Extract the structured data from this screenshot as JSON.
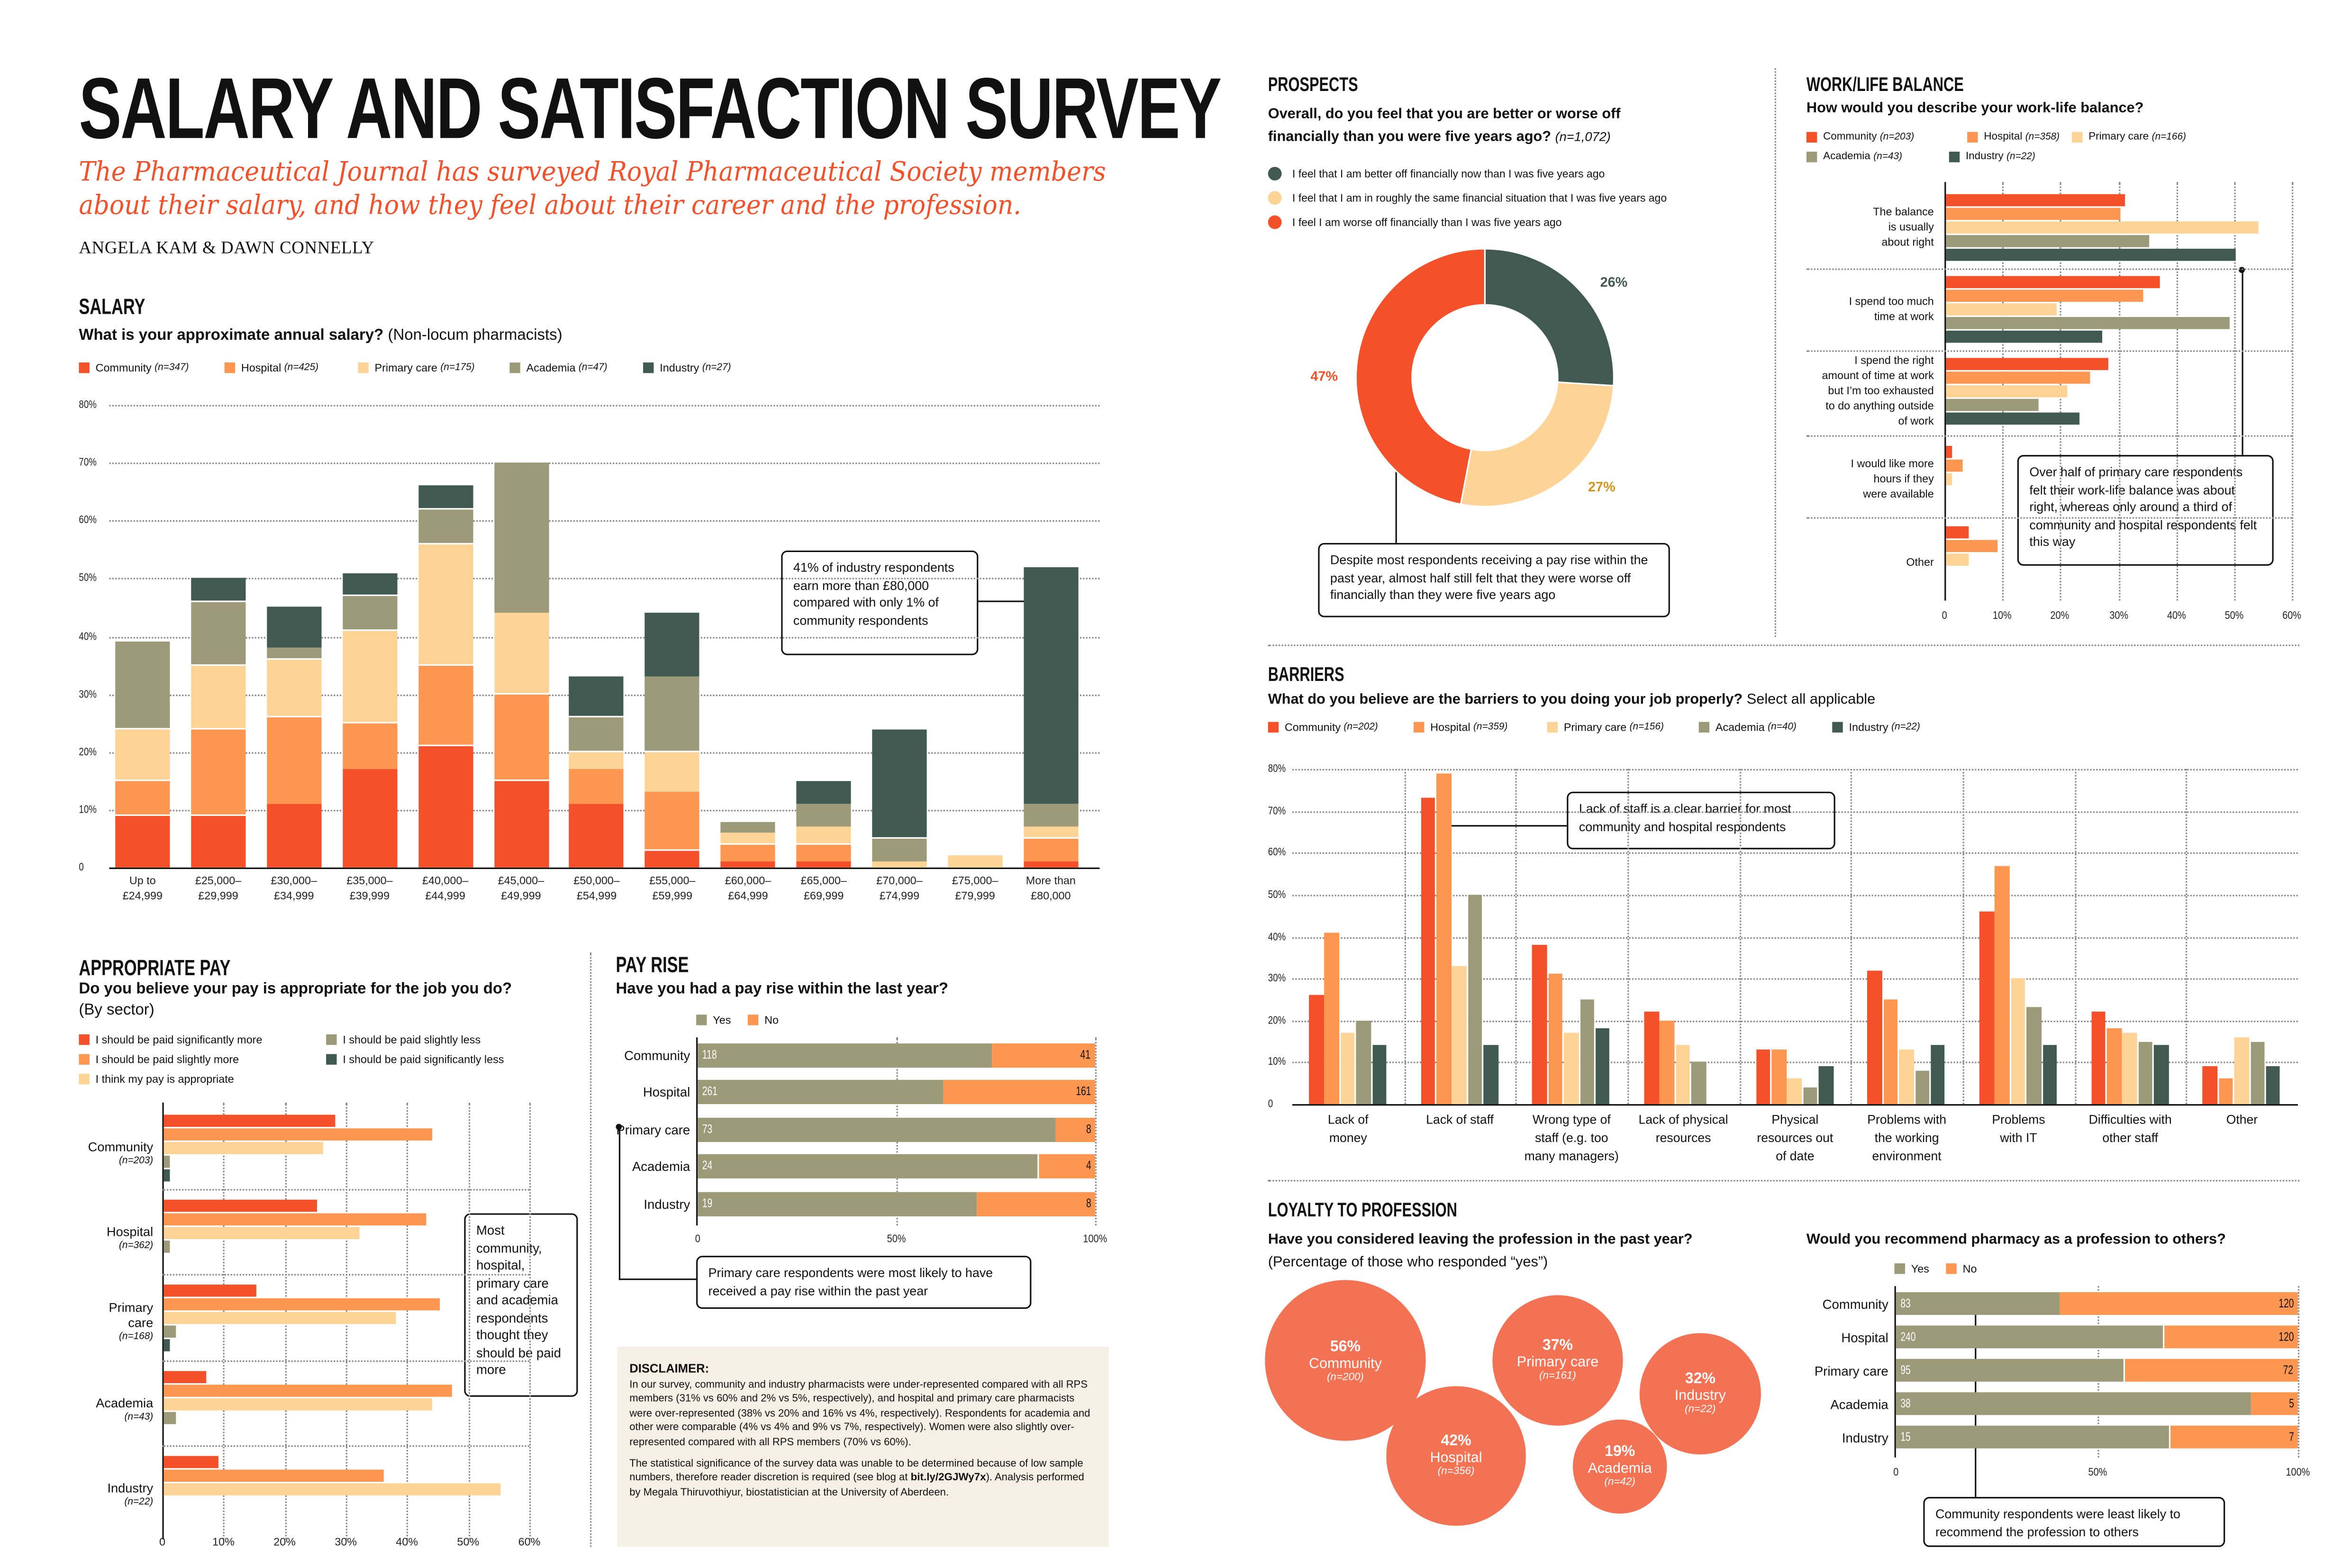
{
  "header": {
    "title": "SALARY AND SATISFACTION SURVEY",
    "subtitle_line1": "The Pharmaceutical Journal has surveyed Royal Pharmaceutical Society members",
    "subtitle_line2": "about their salary, and how they feel about their career and the profession.",
    "authors": "ANGELA KAM & DAWN CONNELLY"
  },
  "colors": {
    "community": "#f4502a",
    "hospital": "#fd9650",
    "primary_care": "#fed396",
    "academia": "#9d9a79",
    "industry": "#405a51",
    "bubble": "#f47254",
    "disclaimer_bg": "#f5efe6",
    "yes": "#9d9a79",
    "no": "#fd9650"
  },
  "sections": {
    "salary": {
      "heading": "SALARY",
      "question": "What is your approximate annual salary?",
      "question_note": "(Non-locum pharmacists)",
      "callout": "41% of industry respondents earn more than £80,000 compared with only 1% of community respondents"
    },
    "appropriate_pay": {
      "heading": "APPROPRIATE PAY",
      "question": "Do you believe your pay is appropriate for the job you do?",
      "question_note": "(By sector)",
      "callout": "Most community, hospital, primary care and academia respondents thought they should be paid more"
    },
    "pay_rise": {
      "heading": "PAY RISE",
      "question": "Have you had a pay rise within the last year?",
      "callout": "Primary care respondents were most likely to have received a pay rise within the past year"
    },
    "disclaimer": {
      "heading": "DISCLAIMER:",
      "para1": "In our survey, community and industry pharmacists were under-represented compared with all RPS members (31% vs 60% and 2% vs 5%, respectively), and hospital and primary care pharmacists were over-represented (38% vs 20% and 16% vs 4%, respectively). Respondents for academia and other were comparable (4% vs 4% and 9% vs 7%, respectively). Women were also slightly over-represented compared with all RPS members (70% vs 60%).",
      "para2_start": "The statistical significance of the survey data was unable to be determined because of low sample numbers, therefore reader discretion is required (see blog at ",
      "link": "bit.ly/2GJWy7x",
      "para2_end": "). Analysis performed by Megala Thiruvothiyur, biostatistician at the University of Aberdeen."
    },
    "prospects": {
      "heading": "PROSPECTS",
      "question_line1": "Overall, do you feel that you are better or worse off",
      "question_line2": "financially than you were five years ago?",
      "question_note": "(n=1,072)",
      "callout": "Despite most respondents receiving a pay rise within the past year, almost half still felt that they were worse off financially than they were five years ago"
    },
    "work_life": {
      "heading": "WORK/LIFE BALANCE",
      "question": "How would you describe your work-life balance?",
      "callout": "Over half of primary care respondents felt their work-life balance was about right, whereas only around a third of community and hospital respondents felt this way"
    },
    "barriers": {
      "heading": "BARRIERS",
      "question": "What do you believe are the barriers to you doing your job properly?",
      "question_note": "Select all applicable",
      "callout": "Lack of staff is a clear barrier for most community and hospital respondents"
    },
    "loyalty": {
      "heading": "LOYALTY TO PROFESSION",
      "question": "Have you considered leaving the profession in the past year?",
      "question_note": "(Percentage of those who responded “yes”)"
    },
    "recommend": {
      "question": "Would you recommend pharmacy as a profession to others?",
      "callout": "Community respondents were least likely to recommend the profession to others"
    }
  },
  "chart_data": [
    {
      "id": "salary",
      "type": "bar",
      "stacked": true,
      "categories": [
        [
          "Up to",
          "£24,999"
        ],
        [
          "£25,000–",
          "£29,999"
        ],
        [
          "£30,000–",
          "£34,999"
        ],
        [
          "£35,000–",
          "£39,999"
        ],
        [
          "£40,000–",
          "£44,999"
        ],
        [
          "£45,000–",
          "£49,999"
        ],
        [
          "£50,000–",
          "£54,999"
        ],
        [
          "£55,000–",
          "£59,999"
        ],
        [
          "£60,000–",
          "£64,999"
        ],
        [
          "£65,000–",
          "£69,999"
        ],
        [
          "£70,000–",
          "£74,999"
        ],
        [
          "£75,000–",
          "£79,999"
        ],
        [
          "More than",
          "£80,000"
        ]
      ],
      "series": [
        {
          "name": "Community",
          "n": "(n=347)",
          "color": "#f4502a",
          "values": [
            9,
            9,
            11,
            17,
            21,
            15,
            11,
            3,
            1,
            1,
            0,
            0,
            1
          ]
        },
        {
          "name": "Hospital",
          "n": "(n=425)",
          "color": "#fd9650",
          "values": [
            6,
            15,
            15,
            8,
            14,
            15,
            6,
            10,
            3,
            3,
            0,
            0,
            4
          ]
        },
        {
          "name": "Primary care",
          "n": "(n=175)",
          "color": "#fed396",
          "values": [
            9,
            11,
            10,
            16,
            21,
            14,
            3,
            7,
            2,
            3,
            1,
            2,
            2
          ]
        },
        {
          "name": "Academia",
          "n": "(n=47)",
          "color": "#9d9a79",
          "values": [
            15,
            11,
            2,
            6,
            6,
            26,
            6,
            13,
            2,
            4,
            4,
            0,
            4
          ]
        },
        {
          "name": "Industry",
          "n": "(n=27)",
          "color": "#405a51",
          "values": [
            0,
            4,
            7,
            4,
            4,
            0,
            7,
            11,
            0,
            4,
            19,
            0,
            41
          ]
        }
      ],
      "ylim": [
        0,
        80
      ],
      "yticks": [
        "0",
        "10%",
        "20%",
        "30%",
        "40%",
        "50%",
        "60%",
        "70%",
        "80%"
      ],
      "grid": true,
      "legend": "top-left"
    },
    {
      "id": "appropriate_pay",
      "type": "bar",
      "orientation": "horizontal",
      "categories": [
        {
          "label": [
            "Community"
          ],
          "n": "(n=203)"
        },
        {
          "label": [
            "Hospital"
          ],
          "n": "(n=362)"
        },
        {
          "label": [
            "Primary",
            "care"
          ],
          "n": "(n=168)"
        },
        {
          "label": [
            "Academia"
          ],
          "n": "(n=43)"
        },
        {
          "label": [
            "Industry"
          ],
          "n": "(n=22)"
        }
      ],
      "series": [
        {
          "name": "I should be paid significantly more",
          "color": "#f4502a",
          "values": [
            28,
            25,
            15,
            7,
            9
          ]
        },
        {
          "name": "I should be paid slightly more",
          "color": "#fd9650",
          "values": [
            44,
            43,
            45,
            47,
            36
          ]
        },
        {
          "name": "I think my pay is appropriate",
          "color": "#fed396",
          "values": [
            26,
            32,
            38,
            44,
            55
          ]
        },
        {
          "name": "I should be paid slightly less",
          "color": "#9d9a79",
          "values": [
            1,
            1,
            2,
            2,
            0
          ]
        },
        {
          "name": "I should be paid significantly less",
          "color": "#405a51",
          "values": [
            1,
            0,
            1,
            0,
            0
          ]
        }
      ],
      "legend_order": [
        0,
        3,
        1,
        4,
        2
      ],
      "xlim": [
        0,
        60
      ],
      "xticks": [
        "0",
        "10%",
        "20%",
        "30%",
        "40%",
        "50%",
        "60%"
      ],
      "grid": true
    },
    {
      "id": "pay_rise",
      "type": "bar",
      "orientation": "horizontal",
      "stacked": true,
      "normalized": true,
      "categories": [
        "Community",
        "Hospital",
        "Primary care",
        "Academia",
        "Industry"
      ],
      "series": [
        {
          "name": "Yes",
          "color": "#9d9a79",
          "values": [
            118,
            261,
            73,
            24,
            19
          ]
        },
        {
          "name": "No",
          "color": "#fd9650",
          "values": [
            41,
            161,
            8,
            4,
            8
          ]
        }
      ],
      "xticks": [
        "0",
        "50%",
        "100%"
      ]
    },
    {
      "id": "prospects",
      "type": "pie",
      "donut": true,
      "labels": [
        "I feel that I am better off financially now than I was five years ago",
        "I feel that I am in roughly the same financial situation that I was five years ago",
        "I feel I am worse off financially than I was five years ago"
      ],
      "values": [
        26,
        27,
        47
      ],
      "value_labels": [
        "26%",
        "27%",
        "47%"
      ],
      "colors": [
        "#405a51",
        "#fed396",
        "#f4502a"
      ],
      "label_colors": [
        "#405a51",
        "#d4961a",
        "#f4502a"
      ]
    },
    {
      "id": "work_life",
      "type": "bar",
      "orientation": "horizontal",
      "categories": [
        [
          "The balance",
          "is usually",
          "about right"
        ],
        [
          "I spend too much",
          "time at work"
        ],
        [
          "I spend the right",
          "amount of time at work",
          "but I’m too exhausted",
          "to do anything outside",
          "of work"
        ],
        [
          "I would like more",
          "hours if they",
          "were available"
        ],
        [
          "Other"
        ]
      ],
      "series": [
        {
          "name": "Community",
          "n": "(n=203)",
          "color": "#f4502a",
          "values": [
            31,
            37,
            28,
            1,
            4
          ]
        },
        {
          "name": "Hospital",
          "n": "(n=358)",
          "color": "#fd9650",
          "values": [
            30,
            34,
            25,
            3,
            9
          ]
        },
        {
          "name": "Primary care",
          "n": "(n=166)",
          "color": "#fed396",
          "values": [
            54,
            19,
            21,
            1,
            4
          ]
        },
        {
          "name": "Academia",
          "n": "(n=43)",
          "color": "#9d9a79",
          "values": [
            35,
            49,
            16,
            0,
            0
          ]
        },
        {
          "name": "Industry",
          "n": "(n=22)",
          "color": "#405a51",
          "values": [
            50,
            27,
            23,
            0,
            0
          ]
        }
      ],
      "xlim": [
        0,
        60
      ],
      "xticks": [
        "0",
        "10%",
        "20%",
        "30%",
        "40%",
        "50%",
        "60%"
      ],
      "grid": true
    },
    {
      "id": "barriers",
      "type": "bar",
      "categories": [
        [
          "Lack of",
          "money"
        ],
        [
          "Lack of staff"
        ],
        [
          "Wrong type of",
          "staff (e.g. too",
          "many managers)"
        ],
        [
          "Lack of physical",
          "resources"
        ],
        [
          "Physical",
          "resources out",
          "of date"
        ],
        [
          "Problems with",
          "the working",
          "environment"
        ],
        [
          "Problems",
          "with IT"
        ],
        [
          "Difficulties with",
          "other staff"
        ],
        [
          "Other"
        ]
      ],
      "series": [
        {
          "name": "Community",
          "n": "(n=202)",
          "color": "#f4502a",
          "values": [
            26,
            73,
            38,
            22,
            13,
            32,
            46,
            22,
            9
          ]
        },
        {
          "name": "Hospital",
          "n": "(n=359)",
          "color": "#fd9650",
          "values": [
            41,
            79,
            31,
            20,
            13,
            25,
            57,
            18,
            6
          ]
        },
        {
          "name": "Primary care",
          "n": "(n=156)",
          "color": "#fed396",
          "values": [
            17,
            33,
            17,
            14,
            6,
            13,
            30,
            17,
            16
          ]
        },
        {
          "name": "Academia",
          "n": "(n=40)",
          "color": "#9d9a79",
          "values": [
            20,
            50,
            25,
            10,
            4,
            8,
            23,
            15,
            15
          ]
        },
        {
          "name": "Industry",
          "n": "(n=22)",
          "color": "#405a51",
          "values": [
            14,
            14,
            18,
            0,
            9,
            14,
            14,
            14,
            9
          ]
        }
      ],
      "ylim": [
        0,
        80
      ],
      "yticks": [
        "0",
        "10%",
        "20%",
        "30%",
        "40%",
        "50%",
        "60%",
        "70%",
        "80%"
      ],
      "grid": true
    },
    {
      "id": "loyalty",
      "type": "scatter",
      "bubble": true,
      "items": [
        {
          "label": "Community",
          "n": "(n=200)",
          "value": 56,
          "value_label": "56%"
        },
        {
          "label": "Hospital",
          "n": "(n=356)",
          "value": 42,
          "value_label": "42%"
        },
        {
          "label": "Primary care",
          "n": "(n=161)",
          "value": 37,
          "value_label": "37%"
        },
        {
          "label": "Industry",
          "n": "(n=22)",
          "value": 32,
          "value_label": "32%"
        },
        {
          "label": "Academia",
          "n": "(n=42)",
          "value": 19,
          "value_label": "19%"
        }
      ]
    },
    {
      "id": "recommend",
      "type": "bar",
      "orientation": "horizontal",
      "stacked": true,
      "normalized": true,
      "categories": [
        "Community",
        "Hospital",
        "Primary care",
        "Academia",
        "Industry"
      ],
      "series": [
        {
          "name": "Yes",
          "color": "#9d9a79",
          "values": [
            83,
            240,
            95,
            38,
            15
          ]
        },
        {
          "name": "No",
          "color": "#fd9650",
          "values": [
            120,
            120,
            72,
            5,
            7
          ]
        }
      ],
      "xticks": [
        "0",
        "50%",
        "100%"
      ]
    }
  ]
}
